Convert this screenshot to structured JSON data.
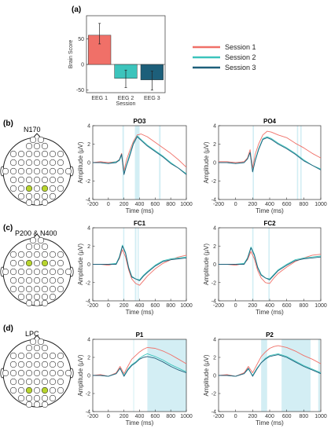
{
  "panel_letters": {
    "a": "(a)",
    "b": "(b)",
    "c": "(c)",
    "d": "(d)"
  },
  "colors": {
    "session1": "#f07068",
    "session2": "#3cc4bc",
    "session3": "#1d5f7a",
    "shade": "#d3eef4",
    "electrode_highlight": "#b8d52e"
  },
  "legend": [
    {
      "label": "Session 1",
      "color": "#f07068"
    },
    {
      "label": "Session 2",
      "color": "#3cc4bc"
    },
    {
      "label": "Session 3",
      "color": "#1d5f7a"
    }
  ],
  "components": [
    "N170",
    "P200 & N400",
    "LPC"
  ],
  "chart_data": [
    {
      "type": "bar",
      "categories": [
        "EEG 1",
        "EEG 2",
        "EEG 3"
      ],
      "values": [
        57,
        -27,
        -30
      ],
      "errors": [
        [
          40,
          80
        ],
        [
          -45,
          -11
        ],
        [
          -50,
          -13
        ]
      ],
      "colors": [
        "#f07068",
        "#3cc4bc",
        "#1d5f7a"
      ],
      "xlabel": "Session",
      "ylabel": "Brain Score",
      "ylim": [
        -55,
        95
      ],
      "yticks": [
        -50,
        0,
        50
      ]
    },
    {
      "type": "line",
      "title": "PO3",
      "xlabel": "Time (ms)",
      "ylabel": "Amplitude (µV)",
      "xlim": [
        -200,
        1000
      ],
      "ylim": [
        -4,
        4
      ],
      "xticks": [
        -200,
        0,
        200,
        400,
        600,
        800,
        1000
      ],
      "yticks": [
        -4,
        -2,
        0,
        2,
        4
      ],
      "shaded_intervals": [
        [
          180,
          200
        ],
        [
          340,
          400
        ],
        [
          650,
          670
        ]
      ],
      "x": [
        -200,
        -100,
        0,
        100,
        140,
        170,
        200,
        230,
        270,
        320,
        370,
        420,
        500,
        600,
        700,
        800,
        900,
        1000
      ],
      "series": [
        {
          "name": "Session 1",
          "values": [
            0.0,
            0.1,
            0.0,
            0.1,
            0.3,
            1.0,
            -0.9,
            0.2,
            1.2,
            2.3,
            3.0,
            3.1,
            2.8,
            2.2,
            1.6,
            1.0,
            0.3,
            -0.5
          ]
        },
        {
          "name": "Session 2",
          "values": [
            0.0,
            0.0,
            -0.1,
            0.1,
            0.2,
            0.8,
            -1.2,
            -0.3,
            0.8,
            2.1,
            2.9,
            2.5,
            1.9,
            1.3,
            0.7,
            0.0,
            -0.6,
            -1.2
          ]
        },
        {
          "name": "Session 3",
          "values": [
            0.0,
            0.0,
            -0.1,
            0.0,
            0.3,
            0.9,
            -1.3,
            -0.4,
            0.6,
            2.0,
            2.8,
            2.4,
            1.8,
            1.2,
            0.6,
            -0.1,
            -0.6,
            -1.3
          ]
        }
      ]
    },
    {
      "type": "line",
      "title": "PO4",
      "xlabel": "Time (ms)",
      "ylabel": "Amplitude (µV)",
      "xlim": [
        -200,
        1000
      ],
      "ylim": [
        -4,
        4
      ],
      "xticks": [
        -200,
        0,
        200,
        400,
        600,
        800,
        1000
      ],
      "yticks": [
        -4,
        -2,
        0,
        2,
        4
      ],
      "shaded_intervals": [
        [
          200,
          215
        ],
        [
          720,
          735
        ],
        [
          760,
          775
        ]
      ],
      "x": [
        -200,
        -100,
        0,
        100,
        140,
        170,
        200,
        230,
        270,
        320,
        370,
        420,
        500,
        600,
        700,
        800,
        900,
        1000
      ],
      "series": [
        {
          "name": "Session 1",
          "values": [
            0.1,
            0.1,
            0.0,
            0.1,
            0.5,
            1.4,
            -0.6,
            0.9,
            2.0,
            3.0,
            3.4,
            3.3,
            3.0,
            2.7,
            2.1,
            1.6,
            1.0,
            0.5
          ]
        },
        {
          "name": "Session 2",
          "values": [
            0.0,
            0.0,
            -0.1,
            0.0,
            0.4,
            1.1,
            -1.0,
            0.3,
            1.5,
            2.6,
            2.8,
            2.6,
            2.1,
            1.6,
            1.0,
            0.3,
            -0.3,
            -0.7
          ]
        },
        {
          "name": "Session 3",
          "values": [
            0.0,
            0.0,
            -0.1,
            0.0,
            0.4,
            1.1,
            -1.0,
            0.2,
            1.4,
            2.5,
            2.7,
            2.5,
            2.0,
            1.5,
            0.9,
            0.2,
            -0.3,
            -0.8
          ]
        }
      ]
    },
    {
      "type": "line",
      "title": "FC1",
      "xlabel": "Time (ms)",
      "ylabel": "Amplitude (µV)",
      "xlim": [
        -200,
        1000
      ],
      "ylim": [
        -4,
        4
      ],
      "xticks": [
        -200,
        0,
        200,
        400,
        600,
        800,
        1000
      ],
      "yticks": [
        -4,
        -2,
        0,
        2,
        4
      ],
      "shaded_intervals": [
        [
          190,
          205
        ],
        [
          340,
          360
        ],
        [
          375,
          390
        ]
      ],
      "x": [
        -200,
        -100,
        0,
        100,
        140,
        180,
        220,
        260,
        300,
        350,
        400,
        450,
        500,
        600,
        700,
        800,
        900,
        1000
      ],
      "series": [
        {
          "name": "Session 1",
          "values": [
            0.0,
            0.0,
            -0.1,
            0.1,
            0.6,
            1.6,
            0.8,
            -0.6,
            -1.6,
            -2.1,
            -2.3,
            -1.8,
            -1.3,
            -0.5,
            0.1,
            0.5,
            0.8,
            1.0
          ]
        },
        {
          "name": "Session 2",
          "values": [
            0.0,
            0.0,
            0.0,
            0.1,
            0.8,
            2.1,
            1.3,
            -0.3,
            -1.3,
            -1.6,
            -1.7,
            -1.2,
            -0.8,
            -0.1,
            0.4,
            0.6,
            0.7,
            0.8
          ]
        },
        {
          "name": "Session 3",
          "values": [
            0.0,
            0.0,
            0.0,
            0.0,
            0.7,
            2.0,
            1.2,
            -0.4,
            -1.4,
            -1.6,
            -1.8,
            -1.3,
            -0.9,
            -0.2,
            0.3,
            0.5,
            0.6,
            0.7
          ]
        }
      ]
    },
    {
      "type": "line",
      "title": "FC2",
      "xlabel": "Time (ms)",
      "ylabel": "Amplitude (µV)",
      "xlim": [
        -200,
        1000
      ],
      "ylim": [
        -4,
        4
      ],
      "xticks": [
        -200,
        0,
        200,
        400,
        600,
        800,
        1000
      ],
      "yticks": [
        -4,
        -2,
        0,
        2,
        4
      ],
      "shaded_intervals": [
        [
          195,
          210
        ],
        [
          385,
          400
        ]
      ],
      "x": [
        -200,
        -100,
        0,
        100,
        140,
        180,
        220,
        260,
        300,
        350,
        400,
        450,
        500,
        600,
        700,
        800,
        900,
        1000
      ],
      "series": [
        {
          "name": "Session 1",
          "values": [
            0.0,
            0.0,
            -0.1,
            0.1,
            0.5,
            1.4,
            0.6,
            -0.7,
            -1.5,
            -2.0,
            -2.1,
            -1.5,
            -1.0,
            -0.3,
            0.3,
            0.7,
            1.0,
            1.1
          ]
        },
        {
          "name": "Session 2",
          "values": [
            0.0,
            0.0,
            0.0,
            0.1,
            0.7,
            1.9,
            1.1,
            -0.3,
            -1.1,
            -1.5,
            -1.6,
            -1.1,
            -0.6,
            0.0,
            0.5,
            0.7,
            0.8,
            0.9
          ]
        },
        {
          "name": "Session 3",
          "values": [
            0.0,
            0.0,
            0.0,
            0.0,
            0.6,
            1.8,
            1.0,
            -0.4,
            -1.2,
            -1.5,
            -1.7,
            -1.2,
            -0.7,
            -0.1,
            0.4,
            0.6,
            0.7,
            0.8
          ]
        }
      ]
    },
    {
      "type": "line",
      "title": "P1",
      "xlabel": "Time (ms)",
      "ylabel": "Amplitude (µV)",
      "xlim": [
        -200,
        1000
      ],
      "ylim": [
        -4,
        4
      ],
      "xticks": [
        -200,
        0,
        200,
        400,
        600,
        800,
        1000
      ],
      "yticks": [
        -4,
        -2,
        0,
        2,
        4
      ],
      "shaded_intervals": [
        [
          320,
          330
        ],
        [
          500,
          1000
        ]
      ],
      "x": [
        -200,
        -100,
        0,
        100,
        150,
        200,
        250,
        300,
        350,
        400,
        450,
        500,
        600,
        700,
        800,
        900,
        1000
      ],
      "series": [
        {
          "name": "Session 1",
          "values": [
            0.0,
            0.1,
            -0.1,
            0.3,
            1.0,
            0.2,
            1.0,
            1.8,
            2.2,
            2.6,
            2.9,
            3.1,
            3.0,
            2.7,
            2.3,
            1.8,
            1.3
          ]
        },
        {
          "name": "Session 2",
          "values": [
            0.0,
            0.0,
            -0.1,
            0.2,
            0.8,
            0.0,
            0.7,
            1.2,
            1.5,
            1.9,
            2.2,
            2.4,
            2.1,
            1.7,
            1.2,
            0.8,
            0.4
          ]
        },
        {
          "name": "Session 3",
          "values": [
            0.0,
            0.0,
            -0.1,
            0.2,
            0.8,
            -0.1,
            0.6,
            1.1,
            1.4,
            1.8,
            2.0,
            2.1,
            1.9,
            1.5,
            1.0,
            0.6,
            0.3
          ]
        }
      ]
    },
    {
      "type": "line",
      "title": "P2",
      "xlabel": "Time (ms)",
      "ylabel": "Amplitude (µV)",
      "xlim": [
        -200,
        1000
      ],
      "ylim": [
        -4,
        4
      ],
      "xticks": [
        -200,
        0,
        200,
        400,
        600,
        800,
        1000
      ],
      "yticks": [
        -4,
        -2,
        0,
        2,
        4
      ],
      "shaded_intervals": [
        [
          300,
          370
        ],
        [
          540,
          880
        ],
        [
          970,
          990
        ]
      ],
      "x": [
        -200,
        -100,
        0,
        100,
        150,
        200,
        250,
        300,
        350,
        400,
        450,
        500,
        600,
        700,
        800,
        900,
        1000
      ],
      "series": [
        {
          "name": "Session 1",
          "values": [
            0.0,
            0.1,
            -0.1,
            0.3,
            1.0,
            0.3,
            1.2,
            2.1,
            2.6,
            3.0,
            3.2,
            3.3,
            3.1,
            2.7,
            2.2,
            1.8,
            1.3
          ]
        },
        {
          "name": "Session 2",
          "values": [
            0.0,
            0.0,
            -0.1,
            0.2,
            0.7,
            0.0,
            0.8,
            1.4,
            1.9,
            2.2,
            2.3,
            2.4,
            2.1,
            1.6,
            1.1,
            0.7,
            0.3
          ]
        },
        {
          "name": "Session 3",
          "values": [
            0.0,
            0.0,
            -0.1,
            0.2,
            0.8,
            -0.1,
            0.7,
            1.4,
            1.8,
            2.1,
            2.2,
            2.3,
            2.0,
            1.5,
            1.0,
            0.6,
            0.2
          ]
        }
      ]
    }
  ],
  "electrode_maps": [
    {
      "component": "N170",
      "highlighted": [
        "PO3",
        "PO4"
      ]
    },
    {
      "component": "P200 & N400",
      "highlighted": [
        "FC1",
        "FC2"
      ]
    },
    {
      "component": "LPC",
      "highlighted": [
        "P1",
        "P2"
      ]
    }
  ]
}
